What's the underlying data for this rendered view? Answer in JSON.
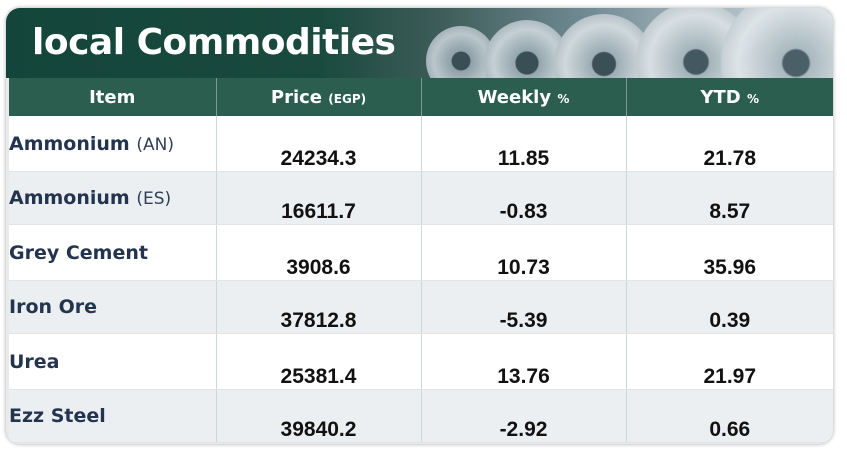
{
  "title": "local Commodities",
  "headers": {
    "item": "Item",
    "price": "Price",
    "price_unit": "(EGP)",
    "weekly": "Weekly",
    "weekly_unit": "%",
    "ytd": "YTD",
    "ytd_unit": "%"
  },
  "rows": [
    {
      "name": "Ammonium",
      "code": "(AN)",
      "price": "24234.3",
      "weekly": "11.85",
      "ytd": "21.78"
    },
    {
      "name": "Ammonium",
      "code": "(ES)",
      "price": "16611.7",
      "weekly": "-0.83",
      "ytd": "8.57"
    },
    {
      "name": "Grey Cement",
      "code": "",
      "price": "3908.6",
      "weekly": "10.73",
      "ytd": "35.96"
    },
    {
      "name": "Iron Ore",
      "code": "",
      "price": "37812.8",
      "weekly": "-5.39",
      "ytd": "0.39"
    },
    {
      "name": "Urea",
      "code": "",
      "price": "25381.4",
      "weekly": "13.76",
      "ytd": "21.97"
    },
    {
      "name": "Ezz Steel",
      "code": "",
      "price": "39840.2",
      "weekly": "-2.92",
      "ytd": "0.66"
    }
  ],
  "colors": {
    "header_bg": "#2c5e50",
    "banner_bg": "#14453a",
    "item_text": "#23344e",
    "value_text": "#111111"
  }
}
